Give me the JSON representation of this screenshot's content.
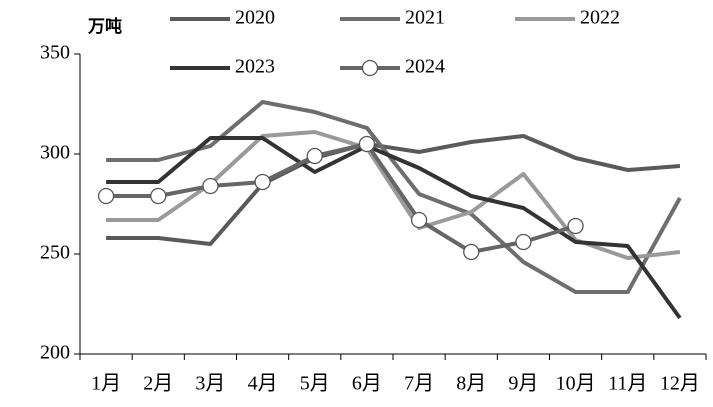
{
  "chart_data": {
    "type": "line",
    "y_label": "万吨",
    "categories": [
      "1月",
      "2月",
      "3月",
      "4月",
      "5月",
      "6月",
      "7月",
      "8月",
      "9月",
      "10月",
      "11月",
      "12月"
    ],
    "series": [
      {
        "name": "2020",
        "color": "#5a5a5a",
        "values": [
          258,
          258,
          255,
          285,
          298,
          305,
          301,
          306,
          309,
          298,
          292,
          294
        ]
      },
      {
        "name": "2021",
        "color": "#6e6e6e",
        "values": [
          297,
          297,
          304,
          326,
          321,
          313,
          280,
          270,
          246,
          231,
          231,
          278
        ]
      },
      {
        "name": "2022",
        "color": "#9a9a9a",
        "values": [
          267,
          267,
          285,
          309,
          311,
          303,
          263,
          271,
          290,
          257,
          248,
          251
        ]
      },
      {
        "name": "2023",
        "color": "#333333",
        "values": [
          286,
          286,
          308,
          308,
          291,
          304,
          293,
          279,
          273,
          256,
          254,
          218
        ]
      },
      {
        "name": "2024",
        "color": "#666666",
        "marker": "circle",
        "values": [
          279,
          279,
          284,
          286,
          299,
          305,
          267,
          251,
          256,
          264,
          null,
          null
        ]
      }
    ],
    "ylim": [
      200,
      350
    ],
    "yticks": [
      200,
      250,
      300,
      350
    ]
  }
}
